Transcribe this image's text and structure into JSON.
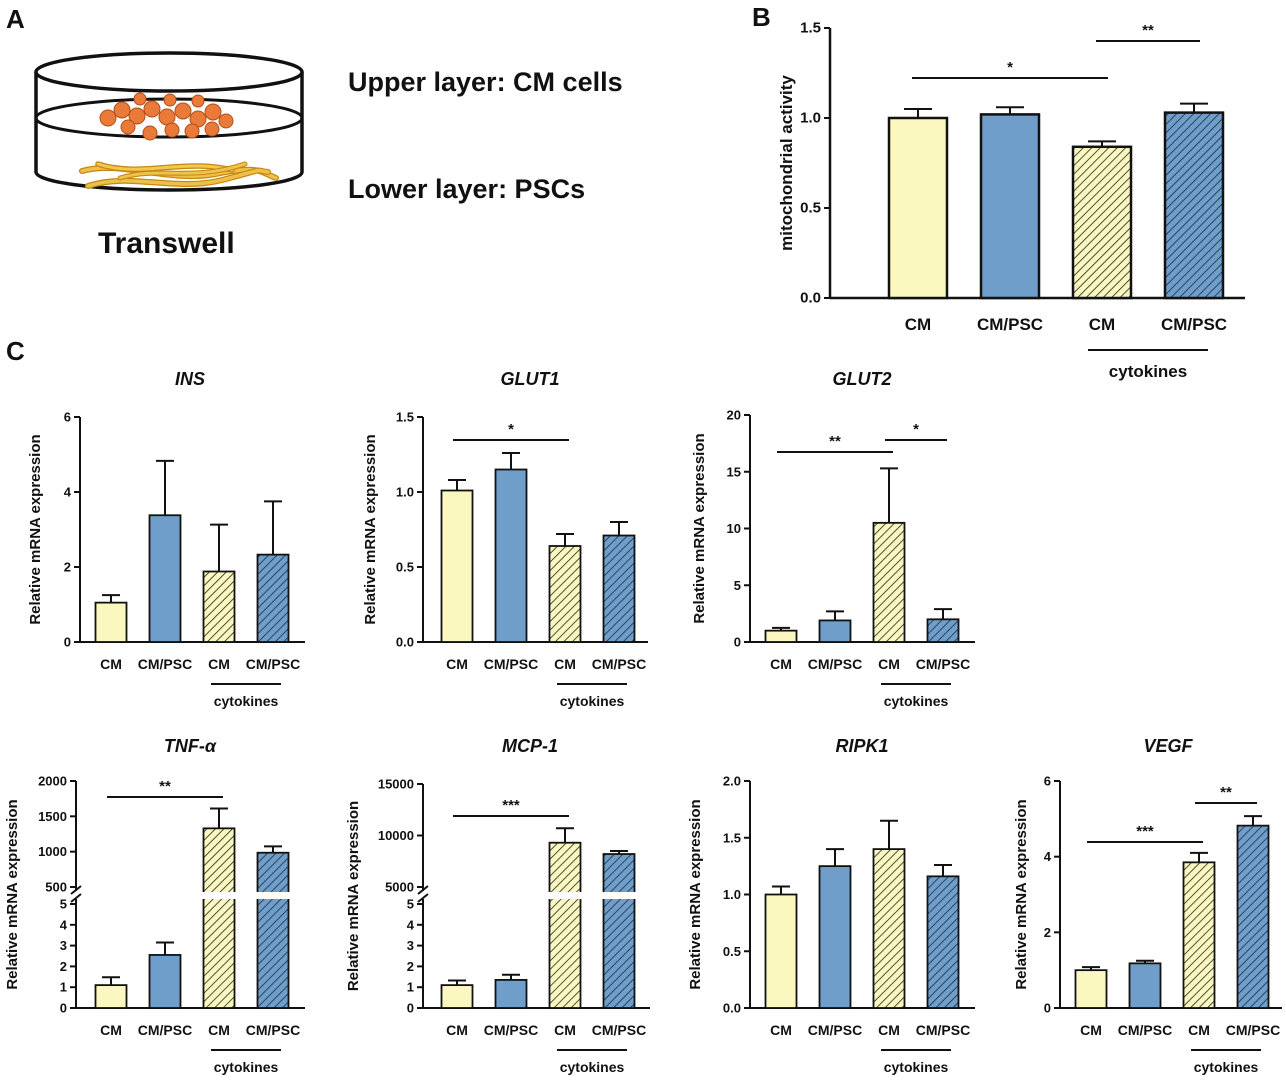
{
  "colors": {
    "cm": "#fbf8bf",
    "cm_psc": "#6e9ec9",
    "edge": "#111111",
    "orange_cells": "#ea7a3a",
    "psc_yellow": "#e7b32c"
  },
  "panel_a": {
    "letter": "A",
    "upper": "Upper layer: CM cells",
    "lower": "Lower layer: PSCs",
    "caption": "Transwell"
  },
  "panel_b_letter": "B",
  "panel_c_letter": "C",
  "chart_data": [
    {
      "id": "mito",
      "type": "bar",
      "title": "",
      "ylabel": "mitochondrial activity",
      "categories": [
        "CM",
        "CM/PSC",
        "CM",
        "CM/PSC"
      ],
      "group_label": "cytokines",
      "values": [
        1.0,
        1.02,
        0.84,
        1.03
      ],
      "errors": [
        0.05,
        0.04,
        0.03,
        0.05
      ],
      "ylim": [
        0,
        1.5
      ],
      "yticks": [
        0,
        0.5,
        1.0,
        1.5
      ],
      "tick_labels": [
        "0.0",
        "0.5",
        "1.0",
        "1.5"
      ],
      "significance": [
        {
          "from": 0,
          "to": 2,
          "label": "*"
        },
        {
          "from": 2,
          "to": 3,
          "label": "**"
        }
      ]
    },
    {
      "id": "ins",
      "type": "bar",
      "title": "INS",
      "ylabel": "Relative mRNA expression",
      "categories": [
        "CM",
        "CM/PSC",
        "CM",
        "CM/PSC"
      ],
      "group_label": "cytokines",
      "values": [
        1.05,
        3.38,
        1.88,
        2.33
      ],
      "errors": [
        0.2,
        1.45,
        1.25,
        1.42
      ],
      "ylim": [
        0,
        6
      ],
      "yticks": [
        0,
        2,
        4,
        6
      ],
      "tick_labels": [
        "0",
        "2",
        "4",
        "6"
      ],
      "significance": []
    },
    {
      "id": "glut1",
      "type": "bar",
      "title": "GLUT1",
      "ylabel": "Relative mRNA expression",
      "categories": [
        "CM",
        "CM/PSC",
        "CM",
        "CM/PSC"
      ],
      "group_label": "cytokines",
      "values": [
        1.01,
        1.15,
        0.64,
        0.71
      ],
      "errors": [
        0.07,
        0.11,
        0.08,
        0.09
      ],
      "ylim": [
        0,
        1.5
      ],
      "yticks": [
        0,
        0.5,
        1.0,
        1.5
      ],
      "tick_labels": [
        "0.0",
        "0.5",
        "1.0",
        "1.5"
      ],
      "significance": [
        {
          "from": 0,
          "to": 2,
          "label": "*"
        }
      ]
    },
    {
      "id": "glut2",
      "type": "bar",
      "title": "GLUT2",
      "ylabel": "Relative mRNA expression",
      "categories": [
        "CM",
        "CM/PSC",
        "CM",
        "CM/PSC"
      ],
      "group_label": "cytokines",
      "values": [
        1.0,
        1.9,
        10.5,
        2.0
      ],
      "errors": [
        0.25,
        0.8,
        4.8,
        0.9
      ],
      "ylim": [
        0,
        20
      ],
      "yticks": [
        0,
        5,
        10,
        15,
        20
      ],
      "tick_labels": [
        "0",
        "5",
        "10",
        "15",
        "20"
      ],
      "significance": [
        {
          "from": 0,
          "to": 2,
          "label": "**"
        },
        {
          "from": 2,
          "to": 3,
          "label": "*"
        }
      ]
    },
    {
      "id": "tnf",
      "type": "bar",
      "title": "TNF-α",
      "ylabel": "Relative mRNA expression",
      "categories": [
        "CM",
        "CM/PSC",
        "CM",
        "CM/PSC"
      ],
      "group_label": "cytokines",
      "values": [
        1.1,
        2.55,
        1330,
        985
      ],
      "errors": [
        0.38,
        0.6,
        280,
        90
      ],
      "broken_axis": {
        "lower": [
          0,
          5
        ],
        "upper": [
          500,
          2000
        ]
      },
      "yticks": [
        0,
        1,
        2,
        3,
        4,
        5,
        500,
        1000,
        1500,
        2000
      ],
      "tick_labels": [
        "0",
        "1",
        "2",
        "3",
        "4",
        "5",
        "500",
        "1000",
        "1500",
        "2000"
      ],
      "significance": [
        {
          "from": 0,
          "to": 2,
          "label": "**"
        }
      ]
    },
    {
      "id": "mcp1",
      "type": "bar",
      "title": "MCP-1",
      "ylabel": "Relative mRNA expression",
      "categories": [
        "CM",
        "CM/PSC",
        "CM",
        "CM/PSC"
      ],
      "group_label": "cytokines",
      "values": [
        1.1,
        1.35,
        9300,
        8200
      ],
      "errors": [
        0.22,
        0.25,
        1400,
        300
      ],
      "broken_axis": {
        "lower": [
          0,
          5
        ],
        "upper": [
          5000,
          15000
        ]
      },
      "yticks": [
        0,
        1,
        2,
        3,
        4,
        5,
        5000,
        10000,
        15000
      ],
      "tick_labels": [
        "0",
        "1",
        "2",
        "3",
        "4",
        "5",
        "5000",
        "10000",
        "15000"
      ],
      "significance": [
        {
          "from": 0,
          "to": 2,
          "label": "***"
        }
      ]
    },
    {
      "id": "ripk1",
      "type": "bar",
      "title": "RIPK1",
      "ylabel": "Relative mRNA expression",
      "categories": [
        "CM",
        "CM/PSC",
        "CM",
        "CM/PSC"
      ],
      "group_label": "cytokines",
      "values": [
        1.0,
        1.25,
        1.4,
        1.16
      ],
      "errors": [
        0.07,
        0.15,
        0.25,
        0.1
      ],
      "ylim": [
        0,
        2.0
      ],
      "yticks": [
        0,
        0.5,
        1.0,
        1.5,
        2.0
      ],
      "tick_labels": [
        "0.0",
        "0.5",
        "1.0",
        "1.5",
        "2.0"
      ],
      "significance": []
    },
    {
      "id": "vegf",
      "type": "bar",
      "title": "VEGF",
      "ylabel": "Relative mRNA expression",
      "categories": [
        "CM",
        "CM/PSC",
        "CM",
        "CM/PSC"
      ],
      "group_label": "cytokines",
      "values": [
        1.0,
        1.18,
        3.85,
        4.82
      ],
      "errors": [
        0.08,
        0.07,
        0.25,
        0.25
      ],
      "ylim": [
        0,
        6
      ],
      "yticks": [
        0,
        2,
        4,
        6
      ],
      "tick_labels": [
        "0",
        "2",
        "4",
        "6"
      ],
      "significance": [
        {
          "from": 0,
          "to": 2,
          "label": "***"
        },
        {
          "from": 2,
          "to": 3,
          "label": "**"
        }
      ]
    }
  ]
}
